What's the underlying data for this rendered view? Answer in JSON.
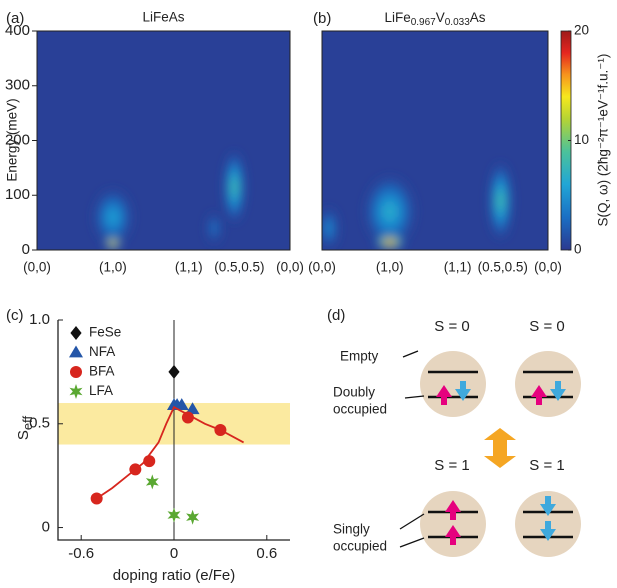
{
  "chart_data": [
    {
      "type": "heatmap",
      "panel_label": "(a)",
      "title": "LiFeAs",
      "categories": [
        "(0,0)",
        "(1,0)",
        "(1,1)",
        "(0.5,0.5)",
        "(0,0)"
      ],
      "ylabel": "Energy (meV)",
      "ylim": [
        0,
        400
      ],
      "yticks": [
        0,
        100,
        200,
        300,
        400
      ],
      "blobs": [
        {
          "x": 1,
          "y": 60,
          "width": 0.55,
          "height": 110,
          "value": 6
        },
        {
          "x": 2.5,
          "y": 40,
          "width": 0.3,
          "height": 60,
          "value": 4
        },
        {
          "x": 2.9,
          "y": 115,
          "width": 0.45,
          "height": 140,
          "value": 9
        },
        {
          "x": 1,
          "y": 12,
          "width": 0.22,
          "height": 28,
          "value": 20
        }
      ]
    },
    {
      "type": "heatmap",
      "panel_label": "(b)",
      "title_parts": [
        "LiFe",
        "0.967",
        "V",
        "0.033",
        "As"
      ],
      "categories": [
        "(0,0)",
        "(1,0)",
        "(1,1)",
        "(0.5,0.5)",
        "(0,0)"
      ],
      "ylim": [
        0,
        400
      ],
      "blobs": [
        {
          "x": 1,
          "y": 70,
          "width": 0.8,
          "height": 140,
          "value": 7
        },
        {
          "x": 0.1,
          "y": 40,
          "width": 0.3,
          "height": 80,
          "value": 5
        },
        {
          "x": 2.95,
          "y": 90,
          "width": 0.55,
          "height": 150,
          "value": 9
        },
        {
          "x": 1,
          "y": 14,
          "width": 0.45,
          "height": 30,
          "value": 20
        }
      ],
      "colorbar": {
        "label": "S(Q, ω) (2ħg⁻²π⁻¹eV⁻¹f.u.⁻¹)",
        "lim": [
          0,
          20
        ],
        "ticks": [
          0,
          10,
          20
        ]
      }
    },
    {
      "type": "scatter",
      "panel_label": "(c)",
      "xlabel": "doping ratio (e/Fe)",
      "ylabel": "S",
      "ylabel_sub": "eff",
      "xlim": [
        -0.75,
        0.75
      ],
      "xticks": [
        -0.6,
        0,
        0.6
      ],
      "ylim": [
        -0.06,
        1.0
      ],
      "yticks": [
        0,
        0.5,
        {
          "value": 1,
          "label": "1.0"
        }
      ],
      "band": [
        0.4,
        0.6
      ],
      "band_color": "#fbeaa0",
      "series": [
        {
          "name": "FeSe",
          "marker": "diamond",
          "color": "#111111",
          "x": [
            0
          ],
          "values": [
            0.75
          ]
        },
        {
          "name": "NFA",
          "marker": "triangle",
          "color": "#2456a8",
          "x": [
            0,
            0.02,
            0.05,
            0.12
          ],
          "values": [
            0.59,
            0.59,
            0.59,
            0.57
          ]
        },
        {
          "name": "BFA",
          "marker": "circle",
          "color": "#d7261e",
          "x": [
            -0.5,
            -0.25,
            -0.16,
            0.09,
            0.3
          ],
          "values": [
            0.14,
            0.28,
            0.32,
            0.53,
            0.47
          ]
        },
        {
          "name": "LFA",
          "marker": "star",
          "color": "#5aa832",
          "x": [
            -0.14,
            0,
            0.12
          ],
          "values": [
            0.22,
            0.06,
            0.05
          ]
        },
        {
          "marker": "line",
          "color": "#d7261e",
          "x": [
            -0.5,
            -0.4,
            -0.3,
            -0.2,
            -0.1,
            -0.05,
            0,
            0.05,
            0.1,
            0.2,
            0.3,
            0.45
          ],
          "values": [
            0.14,
            0.19,
            0.25,
            0.31,
            0.41,
            0.5,
            0.58,
            0.56,
            0.54,
            0.5,
            0.47,
            0.41
          ]
        }
      ]
    }
  ],
  "diagram": {
    "panel_label": "(d)",
    "states": [
      "S = 0",
      "S = 0",
      "S = 1",
      "S = 1"
    ],
    "empty": "Empty",
    "doubly": [
      "Doubly",
      "occupied"
    ],
    "singly": [
      "Singly",
      "occupied"
    ]
  }
}
